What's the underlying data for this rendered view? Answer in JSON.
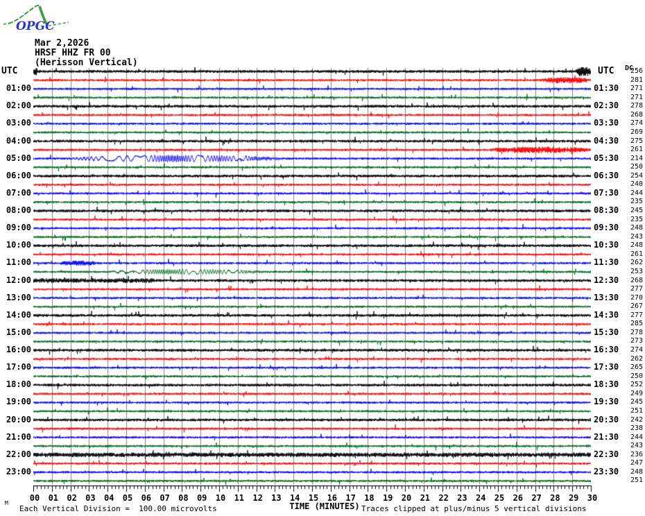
{
  "logo": {
    "text": "OPGC"
  },
  "header": {
    "date": "Mar 2,2026",
    "channel": "HRSF HHZ FR 00",
    "station_name": "(Herisson Vertical)"
  },
  "left_axis_label": "UTC",
  "right_axis_label": "UTC",
  "dc_column_header": "DC",
  "x_axis": {
    "label": "TIME (MINUTES)",
    "ticks": [
      "00",
      "01",
      "02",
      "03",
      "04",
      "05",
      "06",
      "07",
      "08",
      "09",
      "10",
      "11",
      "12",
      "13",
      "14",
      "15",
      "16",
      "17",
      "18",
      "19",
      "20",
      "21",
      "22",
      "23",
      "24",
      "25",
      "26",
      "27",
      "28",
      "29",
      "30"
    ]
  },
  "footer": {
    "scale_note": "Each Vertical Division =  100.00 microvolts",
    "clip_note": "Traces clipped at plus/minus 5 vertical divisions",
    "corner_mark": "M"
  },
  "colors": {
    "black": "#000000",
    "red": "#fb0006",
    "blue": "#0000f6",
    "green": "#01661b",
    "grid": "#808080",
    "logo_green": "#3f9b3f",
    "logo_blue": "#2b35c0"
  },
  "chart_data": {
    "type": "line",
    "subtype": "helicorder-seismogram",
    "title": "HRSF HHZ FR 00 (Herisson Vertical) Mar 2,2026",
    "xlabel": "TIME (MINUTES)",
    "x_range_minutes": [
      0,
      30
    ],
    "minutes_per_line": 30,
    "vertical_division_microvolts": 100.0,
    "clip_divisions": 5,
    "grid": "vertical gray line each minute",
    "trace_color_cycle": [
      "black",
      "red",
      "blue",
      "green"
    ],
    "rows": [
      {
        "start": "00:00",
        "color": "black",
        "dc": 256,
        "left_label": "UTC",
        "right_label": "UTC"
      },
      {
        "start": "00:30",
        "color": "red",
        "dc": 281
      },
      {
        "start": "01:00",
        "color": "blue",
        "dc": 271,
        "left_label": "01:00",
        "right_label": "01:30"
      },
      {
        "start": "01:30",
        "color": "green",
        "dc": 271
      },
      {
        "start": "02:00",
        "color": "black",
        "dc": 278,
        "left_label": "02:00",
        "right_label": "02:30"
      },
      {
        "start": "02:30",
        "color": "red",
        "dc": 268
      },
      {
        "start": "03:00",
        "color": "blue",
        "dc": 274,
        "left_label": "03:00",
        "right_label": "03:30"
      },
      {
        "start": "03:30",
        "color": "green",
        "dc": 269
      },
      {
        "start": "04:00",
        "color": "black",
        "dc": 275,
        "left_label": "04:00",
        "right_label": "04:30"
      },
      {
        "start": "04:30",
        "color": "red",
        "dc": 261
      },
      {
        "start": "05:00",
        "color": "blue",
        "dc": 214,
        "left_label": "05:00",
        "right_label": "05:30"
      },
      {
        "start": "05:30",
        "color": "green",
        "dc": 250
      },
      {
        "start": "06:00",
        "color": "black",
        "dc": 254,
        "left_label": "06:00",
        "right_label": "06:30"
      },
      {
        "start": "06:30",
        "color": "red",
        "dc": 240
      },
      {
        "start": "07:00",
        "color": "blue",
        "dc": 244,
        "left_label": "07:00",
        "right_label": "07:30"
      },
      {
        "start": "07:30",
        "color": "green",
        "dc": 235
      },
      {
        "start": "08:00",
        "color": "black",
        "dc": 245,
        "left_label": "08:00",
        "right_label": "08:30"
      },
      {
        "start": "08:30",
        "color": "red",
        "dc": 235
      },
      {
        "start": "09:00",
        "color": "blue",
        "dc": 248,
        "left_label": "09:00",
        "right_label": "09:30"
      },
      {
        "start": "09:30",
        "color": "green",
        "dc": 243
      },
      {
        "start": "10:00",
        "color": "black",
        "dc": 248,
        "left_label": "10:00",
        "right_label": "10:30"
      },
      {
        "start": "10:30",
        "color": "red",
        "dc": 261
      },
      {
        "start": "11:00",
        "color": "blue",
        "dc": 262,
        "left_label": "11:00",
        "right_label": "11:30"
      },
      {
        "start": "11:30",
        "color": "green",
        "dc": 253
      },
      {
        "start": "12:00",
        "color": "black",
        "dc": 268,
        "left_label": "12:00",
        "right_label": "12:30"
      },
      {
        "start": "12:30",
        "color": "red",
        "dc": 277
      },
      {
        "start": "13:00",
        "color": "blue",
        "dc": 270,
        "left_label": "13:00",
        "right_label": "13:30"
      },
      {
        "start": "13:30",
        "color": "green",
        "dc": 267
      },
      {
        "start": "14:00",
        "color": "black",
        "dc": 277,
        "left_label": "14:00",
        "right_label": "14:30"
      },
      {
        "start": "14:30",
        "color": "red",
        "dc": 285
      },
      {
        "start": "15:00",
        "color": "blue",
        "dc": 278,
        "left_label": "15:00",
        "right_label": "15:30"
      },
      {
        "start": "15:30",
        "color": "green",
        "dc": 273
      },
      {
        "start": "16:00",
        "color": "black",
        "dc": 274,
        "left_label": "16:00",
        "right_label": "16:30"
      },
      {
        "start": "16:30",
        "color": "red",
        "dc": 262
      },
      {
        "start": "17:00",
        "color": "blue",
        "dc": 265,
        "left_label": "17:00",
        "right_label": "17:30"
      },
      {
        "start": "17:30",
        "color": "green",
        "dc": 250
      },
      {
        "start": "18:00",
        "color": "black",
        "dc": 252,
        "left_label": "18:00",
        "right_label": "18:30"
      },
      {
        "start": "18:30",
        "color": "red",
        "dc": 249
      },
      {
        "start": "19:00",
        "color": "blue",
        "dc": 245,
        "left_label": "19:00",
        "right_label": "19:30"
      },
      {
        "start": "19:30",
        "color": "green",
        "dc": 251
      },
      {
        "start": "20:00",
        "color": "black",
        "dc": 242,
        "left_label": "20:00",
        "right_label": "20:30"
      },
      {
        "start": "20:30",
        "color": "red",
        "dc": 238
      },
      {
        "start": "21:00",
        "color": "blue",
        "dc": 244,
        "left_label": "21:00",
        "right_label": "21:30"
      },
      {
        "start": "21:30",
        "color": "green",
        "dc": 243
      },
      {
        "start": "22:00",
        "color": "black",
        "dc": 236,
        "left_label": "22:00",
        "right_label": "22:30"
      },
      {
        "start": "22:30",
        "color": "red",
        "dc": 247
      },
      {
        "start": "23:00",
        "color": "blue",
        "dc": 248,
        "left_label": "23:00",
        "right_label": "23:30"
      },
      {
        "start": "23:30",
        "color": "green",
        "dc": 251
      }
    ],
    "events": [
      {
        "row": 0,
        "start": 0,
        "end": 0.25,
        "kind": "burst",
        "gain": 3.5,
        "description": "spike at start of 00:00 line"
      },
      {
        "row": 0,
        "start": 29.2,
        "end": 30,
        "kind": "burst",
        "gain": 5,
        "description": "clipped spike at end of 00:00 line"
      },
      {
        "row": 1,
        "start": 27.3,
        "end": 30,
        "kind": "burst",
        "gain": 3,
        "description": "burst near end of 00:30 line"
      },
      {
        "row": 9,
        "start": 24.5,
        "end": 30,
        "kind": "burst",
        "gain": 3.2,
        "description": "strong burst at end of 04:30 line"
      },
      {
        "row": 10,
        "start": 1.8,
        "end": 13.5,
        "kind": "lowfreq",
        "gain": 4.5,
        "description": "low-frequency event after 05:00 (low DC 214)"
      },
      {
        "row": 22,
        "start": 1.4,
        "end": 3.6,
        "kind": "burst",
        "gain": 2.6,
        "description": "small burst after 11:00"
      },
      {
        "row": 23,
        "start": 3.8,
        "end": 12.5,
        "kind": "lowfreq",
        "gain": 3.2,
        "description": "low-frequency event after 11:30"
      },
      {
        "row": 24,
        "start": 0,
        "end": 6.5,
        "kind": "noise",
        "gain": 1.7,
        "description": "elevated noise after 12:00"
      },
      {
        "row": 44,
        "start": 0,
        "end": 30,
        "kind": "noise",
        "gain": 1.6,
        "description": "elevated noise across 22:00 line"
      }
    ]
  }
}
